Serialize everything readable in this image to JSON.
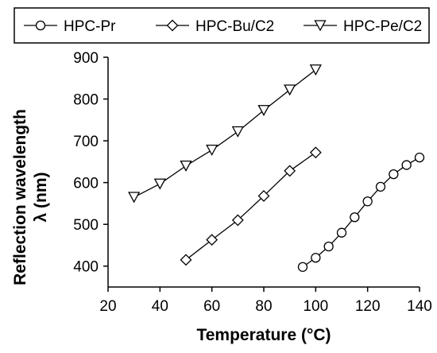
{
  "chart_data": {
    "type": "line",
    "xlabel": "Temperature (°C)",
    "ylabel_line1": "Reflection wavelength",
    "ylabel_line2": "λ (nm)",
    "xlim": [
      20,
      140
    ],
    "ylim": [
      350,
      900
    ],
    "xticks": [
      20,
      40,
      60,
      80,
      100,
      120,
      140
    ],
    "yticks": [
      400,
      500,
      600,
      700,
      800,
      900
    ],
    "grid": false,
    "legend_position": "top",
    "series": [
      {
        "name": "HPC-Pr",
        "marker": "circle",
        "x": [
          95,
          100,
          105,
          110,
          115,
          120,
          125,
          130,
          135,
          140
        ],
        "y": [
          398,
          420,
          447,
          480,
          517,
          555,
          590,
          620,
          642,
          660
        ]
      },
      {
        "name": "HPC-Bu/C2",
        "marker": "diamond",
        "x": [
          50,
          60,
          70,
          80,
          90,
          100
        ],
        "y": [
          415,
          463,
          510,
          568,
          628,
          672
        ]
      },
      {
        "name": "HPC-Pe/C2",
        "marker": "triangle-down",
        "x": [
          30,
          40,
          50,
          60,
          70,
          80,
          90,
          100
        ],
        "y": [
          565,
          597,
          640,
          678,
          722,
          773,
          822,
          870
        ]
      }
    ]
  }
}
